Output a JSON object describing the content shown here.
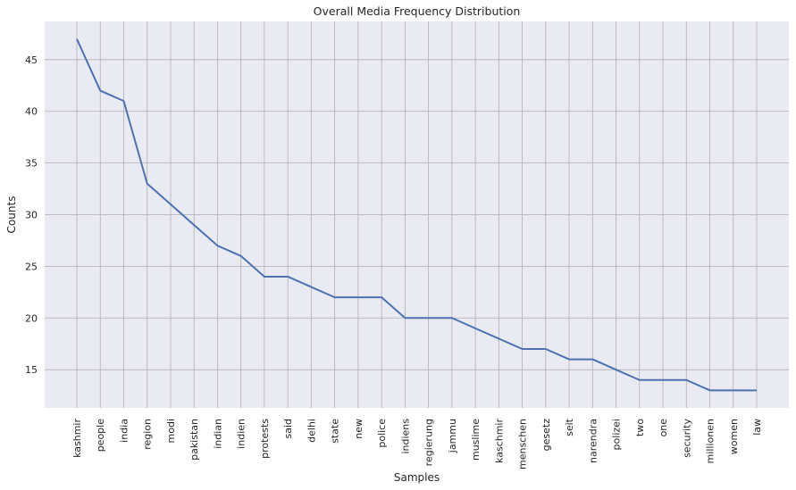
{
  "chart_data": {
    "type": "line",
    "title": "Overall Media Frequency Distribution",
    "xlabel": "Samples",
    "ylabel": "Counts",
    "ylim": [
      11.3,
      48.7
    ],
    "yticks": [
      15,
      20,
      25,
      30,
      35,
      40,
      45
    ],
    "grid": true,
    "line_color": "#4c72b0",
    "background_color": "#eaeaf2",
    "grid_color": "#b0b0b0",
    "categories": [
      "kashmir",
      "people",
      "india",
      "region",
      "modi",
      "pakistan",
      "indian",
      "indien",
      "protests",
      "said",
      "delhi",
      "state",
      "new",
      "police",
      "indiens",
      "regierung",
      "jammu",
      "muslime",
      "kaschmir",
      "menschen",
      "gesetz",
      "seit",
      "narendra",
      "polizei",
      "two",
      "one",
      "security",
      "millionen",
      "women",
      "law"
    ],
    "values": [
      47,
      42,
      41,
      33,
      31,
      29,
      27,
      26,
      24,
      24,
      23,
      22,
      22,
      22,
      20,
      20,
      20,
      19,
      18,
      17,
      17,
      16,
      16,
      15,
      14,
      14,
      14,
      13,
      13,
      13
    ]
  }
}
